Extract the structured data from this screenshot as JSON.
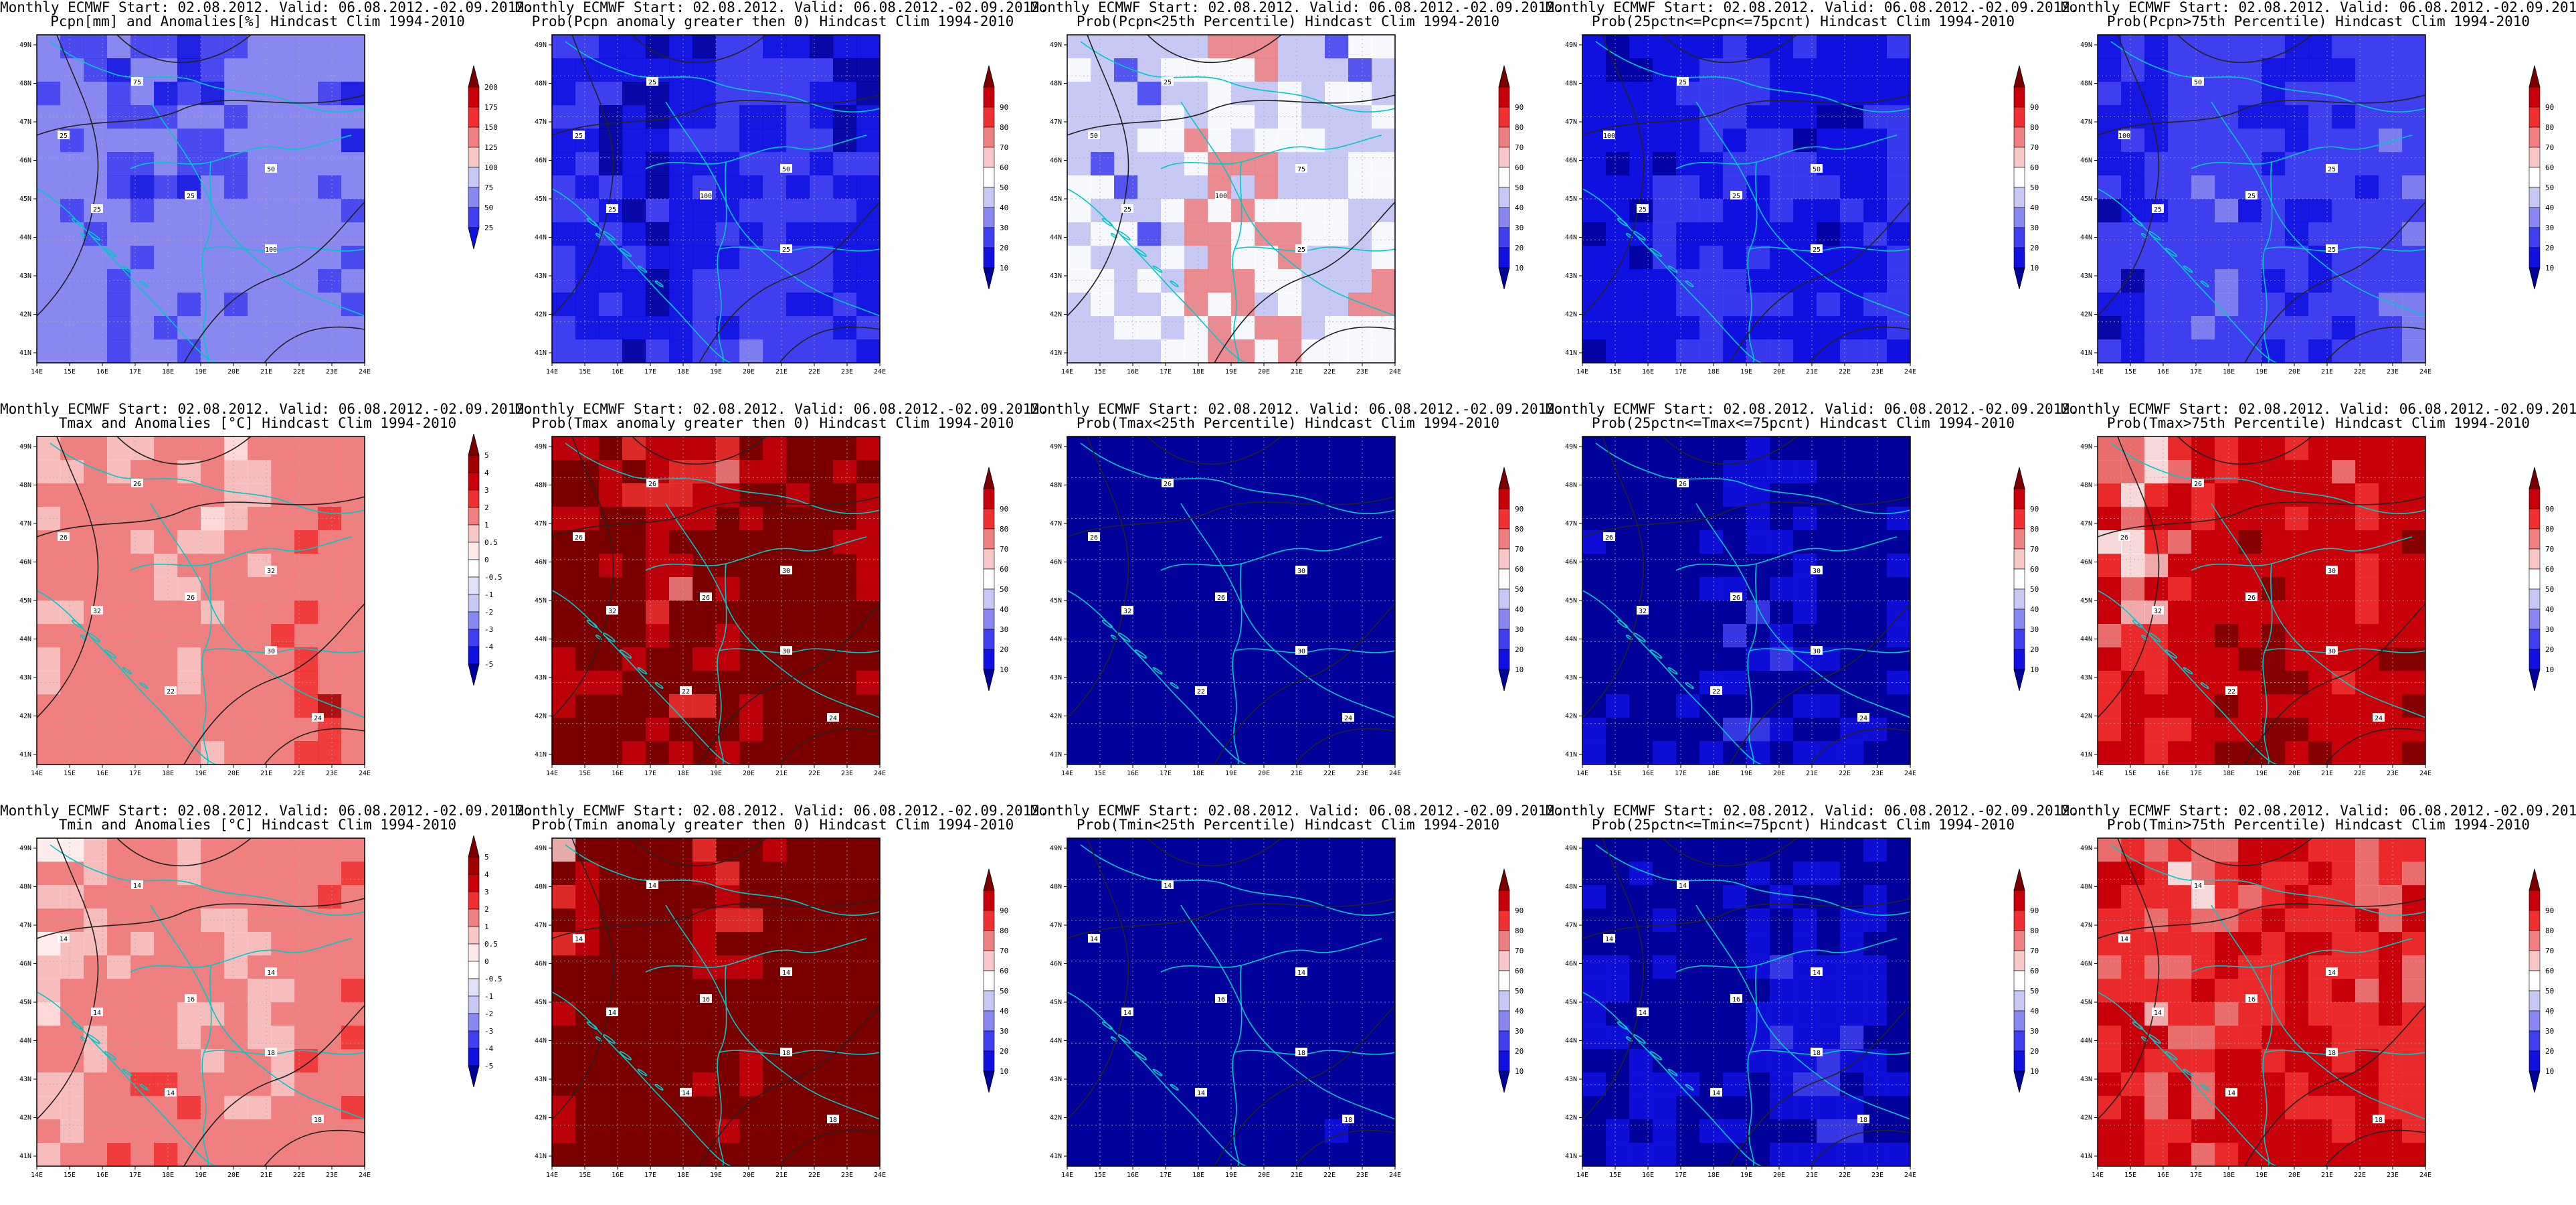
{
  "rows": [
    {
      "variable": "Pcpn",
      "panels": [
        {
          "title1": "Monthly ECMWF Start: 02.08.2012. Valid: 06.08.2012.-02.09.2012.",
          "title2": "Pcpn[mm] and Anomalies[%] Hindcast Clim 1994-2010",
          "colorbar": [
            "200",
            "175",
            "150",
            "125",
            "100",
            "75",
            "50",
            "25"
          ],
          "palette": [
            "#7a0000",
            "#c8000a",
            "#f03030",
            "#f08080",
            "#f8c8c8",
            "#c8c8f4",
            "#8888f0",
            "#4040f0",
            "#1010e0"
          ],
          "fill_levels": [
            0.1,
            0.22,
            0.5,
            0.12,
            0.04,
            0.02
          ],
          "contour_labels": [
            "75",
            "25",
            "50",
            "25",
            "100",
            "25"
          ]
        },
        {
          "title1": "Monthly ECMWF Start: 02.08.2012. Valid: 06.08.2012.-02.09.2012.",
          "title2": "Prob(Pcpn anomaly greater then 0) Hindcast Clim 1994-2010",
          "colorbar": [
            "90",
            "80",
            "70",
            "60",
            "50",
            "40",
            "30",
            "20",
            "10"
          ],
          "palette": [
            "#7a0000",
            "#c8000a",
            "#f03030",
            "#f08080",
            "#f8c8c8",
            "#ffffff",
            "#c8c8f4",
            "#8888f0",
            "#4040f0",
            "#1010e0",
            "#00009a"
          ],
          "fill_levels": [
            0.12,
            0.3,
            0.4,
            0.12,
            0.04,
            0.02
          ],
          "contour_labels": [
            "25",
            "25",
            "50",
            "100",
            "25",
            "25"
          ]
        },
        {
          "title1": "Monthly ECMWF Start: 02.08.2012. Valid: 06.08.2012.-02.09.2012.",
          "title2": "Prob(Pcpn<25th Percentile) Hindcast Clim 1994-2010",
          "colorbar": [
            "90",
            "80",
            "70",
            "60",
            "50",
            "40",
            "30",
            "20",
            "10"
          ],
          "palette": [
            "#7a0000",
            "#c8000a",
            "#f03030",
            "#f08080",
            "#f8c8c8",
            "#ffffff",
            "#c8c8f4",
            "#8888f0",
            "#4040f0",
            "#1010e0",
            "#00009a"
          ],
          "fill_levels": [
            0.05,
            0.35,
            0.15,
            0.35,
            0.08,
            0.02
          ],
          "contour_labels": [
            "25",
            "50",
            "75",
            "100",
            "25",
            "25"
          ]
        },
        {
          "title1": "Monthly ECMWF Start: 02.08.2012. Valid: 06.08.2012.-02.09.2012.",
          "title2": "Prob(25pctn<=Pcpn<=75pcnt) Hindcast Clim 1994-2010",
          "colorbar": [
            "90",
            "80",
            "70",
            "60",
            "50",
            "40",
            "30",
            "20",
            "10"
          ],
          "palette": [
            "#7a0000",
            "#c8000a",
            "#f03030",
            "#f08080",
            "#f8c8c8",
            "#ffffff",
            "#c8c8f4",
            "#8888f0",
            "#4040f0",
            "#1010e0",
            "#00009a"
          ],
          "fill_levels": [
            0.1,
            0.35,
            0.35,
            0.15,
            0.04,
            0.01
          ],
          "contour_labels": [
            "25",
            "100",
            "50",
            "25",
            "25",
            "25"
          ]
        },
        {
          "title1": "Monthly ECMWF Start: 02.08.2012. Valid: 06.08.2012.-02.09.2012.",
          "title2": "Prob(Pcpn>75th Percentile) Hindcast Clim 1994-2010",
          "colorbar": [
            "90",
            "80",
            "70",
            "60",
            "50",
            "40",
            "30",
            "20",
            "10"
          ],
          "palette": [
            "#7a0000",
            "#c8000a",
            "#f03030",
            "#f08080",
            "#f8c8c8",
            "#ffffff",
            "#c8c8f4",
            "#8888f0",
            "#4040f0",
            "#1010e0",
            "#00009a"
          ],
          "fill_levels": [
            0.04,
            0.2,
            0.45,
            0.25,
            0.05,
            0.01
          ],
          "contour_labels": [
            "50",
            "100",
            "25",
            "25",
            "25",
            "25"
          ]
        }
      ]
    },
    {
      "variable": "Tmax",
      "panels": [
        {
          "title1": "Monthly ECMWF Start: 02.08.2012. Valid: 06.08.2012.-02.09.2012.",
          "title2": "Tmax and Anomalies [°C] Hindcast Clim 1994-2010",
          "colorbar": [
            "5",
            "4",
            "3",
            "2",
            "1",
            "0.5",
            "0",
            "-0.5",
            "-1",
            "-2",
            "-3",
            "-4",
            "-5"
          ],
          "palette": [
            "#7a0000",
            "#a00000",
            "#c8000a",
            "#f03030",
            "#f08080",
            "#f8c8c8",
            "#ffe8e8",
            "#ffffff",
            "#e0e0f8",
            "#c8c8f4",
            "#8888f0",
            "#4040f0",
            "#1010e0",
            "#00009a"
          ],
          "fill_levels": [
            0.01,
            0.04,
            0.2,
            0.55,
            0.15,
            0.05
          ],
          "contour_labels": [
            "26",
            "26",
            "32",
            "26",
            "30",
            "32",
            "22",
            "24"
          ]
        },
        {
          "title1": "Monthly ECMWF Start: 02.08.2012. Valid: 06.08.2012.-02.09.2012.",
          "title2": "Prob(Tmax anomaly greater then 0) Hindcast Clim 1994-2010",
          "colorbar": [
            "90",
            "80",
            "70",
            "60",
            "50",
            "40",
            "30",
            "20",
            "10"
          ],
          "palette": [
            "#7a0000",
            "#c8000a",
            "#f03030",
            "#f08080",
            "#f8c8c8",
            "#ffffff",
            "#c8c8f4",
            "#8888f0",
            "#4040f0",
            "#1010e0",
            "#00009a"
          ],
          "fill_levels": [
            0.01,
            0.02,
            0.05,
            0.12,
            0.2,
            0.6
          ],
          "contour_labels": [
            "26",
            "26",
            "30",
            "26",
            "30",
            "32",
            "22",
            "24"
          ]
        },
        {
          "title1": "Monthly ECMWF Start: 02.08.2012. Valid: 06.08.2012.-02.09.2012.",
          "title2": "Prob(Tmax<25th Percentile) Hindcast Clim 1994-2010",
          "colorbar": [
            "90",
            "80",
            "70",
            "60",
            "50",
            "40",
            "30",
            "20",
            "10"
          ],
          "palette": [
            "#7a0000",
            "#c8000a",
            "#f03030",
            "#f08080",
            "#f8c8c8",
            "#ffffff",
            "#c8c8f4",
            "#8888f0",
            "#4040f0",
            "#1010e0",
            "#00009a"
          ],
          "fill_levels": [
            0.98,
            0.02,
            0.0,
            0.0,
            0.0,
            0.0
          ],
          "contour_labels": [
            "26",
            "26",
            "30",
            "26",
            "30",
            "32",
            "22",
            "24"
          ]
        },
        {
          "title1": "Monthly ECMWF Start: 02.08.2012. Valid: 06.08.2012.-02.09.2012.",
          "title2": "Prob(25pctn<=Tmax<=75pcnt) Hindcast Clim 1994-2010",
          "colorbar": [
            "90",
            "80",
            "70",
            "60",
            "50",
            "40",
            "30",
            "20",
            "10"
          ],
          "palette": [
            "#7a0000",
            "#c8000a",
            "#f03030",
            "#f08080",
            "#f8c8c8",
            "#ffffff",
            "#c8c8f4",
            "#8888f0",
            "#4040f0",
            "#1010e0",
            "#00009a"
          ],
          "fill_levels": [
            0.55,
            0.25,
            0.12,
            0.05,
            0.02,
            0.01
          ],
          "contour_labels": [
            "26",
            "26",
            "30",
            "26",
            "30",
            "32",
            "22",
            "24"
          ]
        },
        {
          "title1": "Monthly ECMWF Start: 02.08.2012. Valid: 06.08.2012.-02.09.2012.",
          "title2": "Prob(Tmax>75th Percentile) Hindcast Clim 1994-2010",
          "colorbar": [
            "90",
            "80",
            "70",
            "60",
            "50",
            "40",
            "30",
            "20",
            "10"
          ],
          "palette": [
            "#7a0000",
            "#c8000a",
            "#f03030",
            "#f08080",
            "#f8c8c8",
            "#ffffff",
            "#c8c8f4",
            "#8888f0",
            "#4040f0",
            "#1010e0",
            "#00009a"
          ],
          "fill_levels": [
            0.01,
            0.03,
            0.08,
            0.15,
            0.45,
            0.28
          ],
          "contour_labels": [
            "26",
            "26",
            "30",
            "26",
            "30",
            "32",
            "22",
            "24"
          ]
        }
      ]
    },
    {
      "variable": "Tmin",
      "panels": [
        {
          "title1": "Monthly ECMWF Start: 02.08.2012. Valid: 06.08.2012.-02.09.2012.",
          "title2": "Tmin and Anomalies [°C] Hindcast Clim 1994-2010",
          "colorbar": [
            "5",
            "4",
            "3",
            "2",
            "1",
            "0.5",
            "0",
            "-0.5",
            "-1",
            "-2",
            "-3",
            "-4",
            "-5"
          ],
          "palette": [
            "#7a0000",
            "#a00000",
            "#c8000a",
            "#f03030",
            "#f08080",
            "#f8c8c8",
            "#ffe8e8",
            "#ffffff",
            "#e0e0f8",
            "#c8c8f4",
            "#8888f0",
            "#4040f0",
            "#1010e0",
            "#00009a"
          ],
          "fill_levels": [
            0.0,
            0.02,
            0.3,
            0.45,
            0.2,
            0.03
          ],
          "contour_labels": [
            "14",
            "14",
            "14",
            "16",
            "18",
            "14",
            "14",
            "18"
          ]
        },
        {
          "title1": "Monthly ECMWF Start: 02.08.2012. Valid: 06.08.2012.-02.09.2012.",
          "title2": "Prob(Tmin anomaly greater then 0) Hindcast Clim 1994-2010",
          "colorbar": [
            "90",
            "80",
            "70",
            "60",
            "50",
            "40",
            "30",
            "20",
            "10"
          ],
          "palette": [
            "#7a0000",
            "#c8000a",
            "#f03030",
            "#f08080",
            "#f8c8c8",
            "#ffffff",
            "#c8c8f4",
            "#8888f0",
            "#4040f0",
            "#1010e0",
            "#00009a"
          ],
          "fill_levels": [
            0.0,
            0.01,
            0.03,
            0.08,
            0.13,
            0.75
          ],
          "contour_labels": [
            "14",
            "14",
            "14",
            "16",
            "18",
            "14",
            "14",
            "18"
          ]
        },
        {
          "title1": "Monthly ECMWF Start: 02.08.2012. Valid: 06.08.2012.-02.09.2012.",
          "title2": "Prob(Tmin<25th Percentile) Hindcast Clim 1994-2010",
          "colorbar": [
            "90",
            "80",
            "70",
            "60",
            "50",
            "40",
            "30",
            "20",
            "10"
          ],
          "palette": [
            "#7a0000",
            "#c8000a",
            "#f03030",
            "#f08080",
            "#f8c8c8",
            "#ffffff",
            "#c8c8f4",
            "#8888f0",
            "#4040f0",
            "#1010e0",
            "#00009a"
          ],
          "fill_levels": [
            0.99,
            0.01,
            0.0,
            0.0,
            0.0,
            0.0
          ],
          "contour_labels": [
            "14",
            "14",
            "14",
            "16",
            "18",
            "14",
            "14",
            "18"
          ]
        },
        {
          "title1": "Monthly ECMWF Start: 02.08.2012. Valid: 06.08.2012.-02.09.2012.",
          "title2": "Prob(25pctn<=Tmin<=75pcnt) Hindcast Clim 1994-2010",
          "colorbar": [
            "90",
            "80",
            "70",
            "60",
            "50",
            "40",
            "30",
            "20",
            "10"
          ],
          "palette": [
            "#7a0000",
            "#c8000a",
            "#f03030",
            "#f08080",
            "#f8c8c8",
            "#ffffff",
            "#c8c8f4",
            "#8888f0",
            "#4040f0",
            "#1010e0",
            "#00009a"
          ],
          "fill_levels": [
            0.5,
            0.3,
            0.12,
            0.05,
            0.02,
            0.01
          ],
          "contour_labels": [
            "14",
            "14",
            "14",
            "16",
            "18",
            "14",
            "14",
            "18"
          ]
        },
        {
          "title1": "Monthly ECMWF Start: 02.08.2012. Valid: 06.08.2012.-02.09.2012.",
          "title2": "Prob(Tmin>75th Percentile) Hindcast Clim 1994-2010",
          "colorbar": [
            "90",
            "80",
            "70",
            "60",
            "50",
            "40",
            "30",
            "20",
            "10"
          ],
          "palette": [
            "#7a0000",
            "#c8000a",
            "#f03030",
            "#f08080",
            "#f8c8c8",
            "#ffffff",
            "#c8c8f4",
            "#8888f0",
            "#4040f0",
            "#1010e0",
            "#00009a"
          ],
          "fill_levels": [
            0.02,
            0.08,
            0.15,
            0.25,
            0.35,
            0.15
          ],
          "contour_labels": [
            "14",
            "14",
            "14",
            "16",
            "18",
            "14",
            "14",
            "18"
          ]
        }
      ]
    }
  ],
  "lon_ticks": [
    "14E",
    "15E",
    "16E",
    "17E",
    "18E",
    "19E",
    "20E",
    "21E",
    "22E",
    "23E",
    "24E"
  ],
  "lat_ticks": [
    "49N",
    "48N",
    "47N",
    "46N",
    "45N",
    "44N",
    "43N",
    "42N",
    "41N"
  ],
  "colors": {
    "coastline": "#00c8c8",
    "contour": "#222222",
    "grid": "#aaaaaa"
  }
}
